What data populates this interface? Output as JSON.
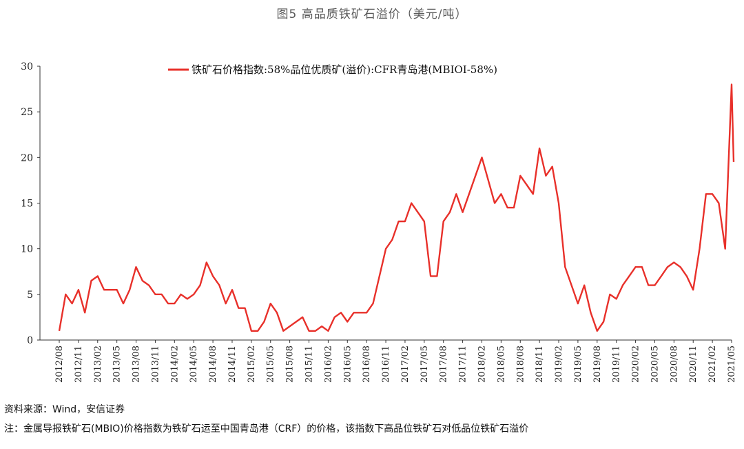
{
  "title": "图5 高品质铁矿石溢价（美元/吨）",
  "source": "资料来源：Wind，安信证券",
  "note": "注：金属导报铁矿石(MBIO)价格指数为铁矿石运至中国青岛港（CRF）的价格，该指数下高品位铁矿石对低品位铁矿石溢价",
  "colors": {
    "series": "#e8302a",
    "axis": "#333333"
  },
  "chart_data": {
    "type": "line",
    "ylim": [
      0,
      30
    ],
    "yticks": [
      0,
      5,
      10,
      15,
      20,
      25,
      30
    ],
    "xlim": [
      "2012/08",
      "2021/05"
    ],
    "xticks": [
      "2012/08",
      "2012/11",
      "2013/02",
      "2013/05",
      "2013/08",
      "2013/11",
      "2014/02",
      "2014/05",
      "2014/08",
      "2014/11",
      "2015/02",
      "2015/05",
      "2015/08",
      "2015/11",
      "2016/02",
      "2016/05",
      "2016/08",
      "2016/11",
      "2017/02",
      "2017/05",
      "2017/08",
      "2017/11",
      "2018/02",
      "2018/05",
      "2018/08",
      "2018/11",
      "2019/02",
      "2019/05",
      "2019/08",
      "2019/11",
      "2020/02",
      "2020/05",
      "2020/08",
      "2020/11",
      "2021/02",
      "2021/05"
    ],
    "legend": "top-center",
    "series": [
      {
        "name": "铁矿石价格指数:58%品位优质矿(溢价):CFR青岛港(MBIOI-58%)",
        "points": [
          [
            "2012/08",
            1
          ],
          [
            "2012/09",
            5
          ],
          [
            "2012/10",
            4
          ],
          [
            "2012/11",
            5.5
          ],
          [
            "2012/12",
            3
          ],
          [
            "2013/01",
            6.5
          ],
          [
            "2013/02",
            7
          ],
          [
            "2013/03",
            5.5
          ],
          [
            "2013/04",
            5.5
          ],
          [
            "2013/05",
            5.5
          ],
          [
            "2013/06",
            4
          ],
          [
            "2013/07",
            5.5
          ],
          [
            "2013/08",
            8
          ],
          [
            "2013/09",
            6.5
          ],
          [
            "2013/10",
            6
          ],
          [
            "2013/11",
            5
          ],
          [
            "2013/12",
            5
          ],
          [
            "2014/01",
            4
          ],
          [
            "2014/02",
            4
          ],
          [
            "2014/03",
            5
          ],
          [
            "2014/04",
            4.5
          ],
          [
            "2014/05",
            5
          ],
          [
            "2014/06",
            6
          ],
          [
            "2014/07",
            8.5
          ],
          [
            "2014/08",
            7
          ],
          [
            "2014/09",
            6
          ],
          [
            "2014/10",
            4
          ],
          [
            "2014/11",
            5.5
          ],
          [
            "2014/12",
            3.5
          ],
          [
            "2015/01",
            3.5
          ],
          [
            "2015/02",
            1
          ],
          [
            "2015/03",
            1
          ],
          [
            "2015/04",
            2
          ],
          [
            "2015/05",
            4
          ],
          [
            "2015/06",
            3
          ],
          [
            "2015/07",
            1
          ],
          [
            "2015/08",
            1.5
          ],
          [
            "2015/09",
            2
          ],
          [
            "2015/10",
            2.5
          ],
          [
            "2015/11",
            1
          ],
          [
            "2015/12",
            1
          ],
          [
            "2016/01",
            1.5
          ],
          [
            "2016/02",
            1
          ],
          [
            "2016/03",
            2.5
          ],
          [
            "2016/04",
            3
          ],
          [
            "2016/05",
            2
          ],
          [
            "2016/06",
            3
          ],
          [
            "2016/07",
            3
          ],
          [
            "2016/08",
            3
          ],
          [
            "2016/09",
            4
          ],
          [
            "2016/10",
            7
          ],
          [
            "2016/11",
            10
          ],
          [
            "2016/12",
            11
          ],
          [
            "2017/01",
            13
          ],
          [
            "2017/02",
            13
          ],
          [
            "2017/03",
            15
          ],
          [
            "2017/04",
            14
          ],
          [
            "2017/05",
            13
          ],
          [
            "2017/06",
            7
          ],
          [
            "2017/07",
            7
          ],
          [
            "2017/08",
            13
          ],
          [
            "2017/09",
            14
          ],
          [
            "2017/10",
            16
          ],
          [
            "2017/11",
            14
          ],
          [
            "2017/12",
            16
          ],
          [
            "2018/01",
            18
          ],
          [
            "2018/02",
            20
          ],
          [
            "2018/03",
            17.5
          ],
          [
            "2018/04",
            15
          ],
          [
            "2018/05",
            16
          ],
          [
            "2018/06",
            14.5
          ],
          [
            "2018/07",
            14.5
          ],
          [
            "2018/08",
            18
          ],
          [
            "2018/09",
            17
          ],
          [
            "2018/10",
            16
          ],
          [
            "2018/11",
            21
          ],
          [
            "2018/12",
            18
          ],
          [
            "2019/01",
            19
          ],
          [
            "2019/02",
            15
          ],
          [
            "2019/03",
            8
          ],
          [
            "2019/04",
            6
          ],
          [
            "2019/05",
            4
          ],
          [
            "2019/06",
            6
          ],
          [
            "2019/07",
            3
          ],
          [
            "2019/08",
            1
          ],
          [
            "2019/09",
            2
          ],
          [
            "2019/10",
            5
          ],
          [
            "2019/11",
            4.5
          ],
          [
            "2019/12",
            6
          ],
          [
            "2020/01",
            7
          ],
          [
            "2020/02",
            8
          ],
          [
            "2020/03",
            8
          ],
          [
            "2020/04",
            6
          ],
          [
            "2020/05",
            6
          ],
          [
            "2020/06",
            7
          ],
          [
            "2020/07",
            8
          ],
          [
            "2020/08",
            8.5
          ],
          [
            "2020/09",
            8
          ],
          [
            "2020/10",
            7
          ],
          [
            "2020/11",
            5.5
          ],
          [
            "2020/12",
            10
          ],
          [
            "2021/01",
            16
          ],
          [
            "2021/02",
            16
          ],
          [
            "2021/03",
            15
          ],
          [
            "2021/04",
            10
          ],
          [
            "2021/05",
            28
          ],
          [
            "2021/05",
            19.5
          ]
        ]
      }
    ]
  }
}
